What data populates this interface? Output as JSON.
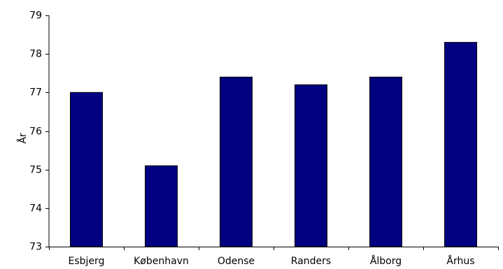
{
  "chart_data": {
    "type": "bar",
    "title": "",
    "xlabel": "",
    "ylabel": "År",
    "categories": [
      "Esbjerg",
      "København",
      "Odense",
      "Randers",
      "Ålborg",
      "Århus"
    ],
    "values": [
      77.0,
      75.1,
      77.4,
      77.2,
      77.4,
      78.3
    ],
    "ylim": [
      73,
      79
    ],
    "yticks": [
      73,
      74,
      75,
      76,
      77,
      78,
      79
    ],
    "grid": false,
    "legend": "none",
    "colors": {
      "bar_fill": "#000080",
      "bar_stroke": "#000000",
      "axis": "#000000",
      "text": "#000000"
    }
  }
}
